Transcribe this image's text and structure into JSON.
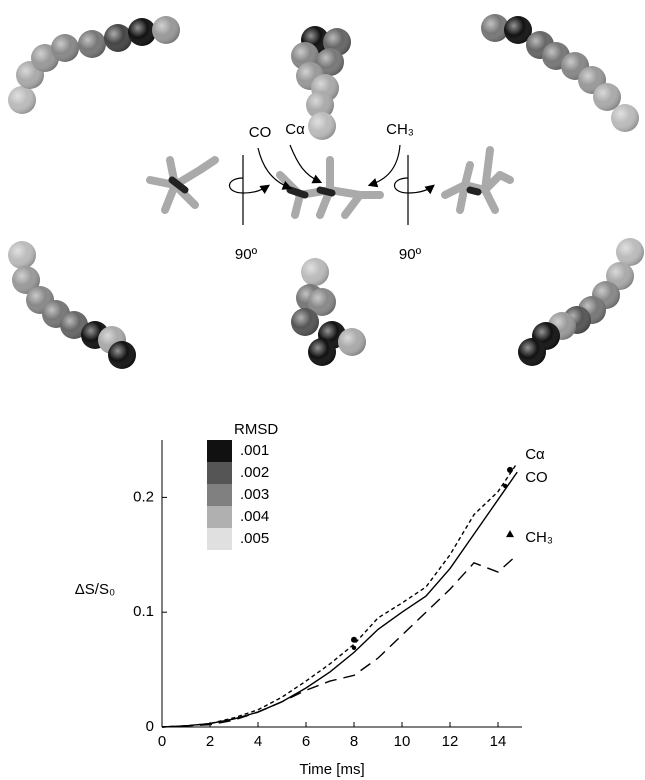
{
  "diagram": {
    "labels": [
      "CO",
      "Cα",
      "CH₃",
      "90º",
      "90º"
    ]
  },
  "chart_data": {
    "type": "line",
    "x_label": "Time [ms]",
    "y_label": "ΔS/S₀",
    "x": [
      0,
      1,
      2,
      3,
      4,
      5,
      6,
      7,
      8,
      9,
      10,
      11,
      12,
      13,
      14,
      14.8
    ],
    "series": [
      {
        "name": "Cα",
        "color": "#000000",
        "style": "dotted",
        "values": [
          0,
          0.001,
          0.003,
          0.008,
          0.015,
          0.026,
          0.04,
          0.055,
          0.072,
          0.095,
          0.108,
          0.122,
          0.15,
          0.185,
          0.205,
          0.23
        ],
        "marker": "circle",
        "marker_x": [
          8,
          14.5
        ],
        "marker_y": [
          0.076,
          0.224
        ]
      },
      {
        "name": "CO",
        "color": "#000000",
        "style": "solid",
        "values": [
          0,
          0.001,
          0.003,
          0.007,
          0.013,
          0.022,
          0.034,
          0.048,
          0.065,
          0.085,
          0.1,
          0.114,
          0.138,
          0.168,
          0.198,
          0.222
        ],
        "marker": "dot",
        "marker_x": [
          8,
          14.3
        ],
        "marker_y": [
          0.069,
          0.21
        ]
      },
      {
        "name": "CH₃",
        "color": "#000000",
        "style": "dashed",
        "values": [
          0,
          0.001,
          0.002,
          0.006,
          0.013,
          0.022,
          0.032,
          0.04,
          0.045,
          0.06,
          0.08,
          0.1,
          0.12,
          0.143,
          0.135,
          0.15
        ],
        "marker": "triangle",
        "marker_x": [
          14.5
        ],
        "marker_y": [
          0.168
        ]
      }
    ],
    "xlim": [
      0,
      15
    ],
    "xticks": [
      0,
      2,
      4,
      6,
      8,
      10,
      12,
      14
    ],
    "ylim": [
      0,
      0.25
    ],
    "yticks": [
      0,
      0.1,
      0.2
    ],
    "color_legend": {
      "title": "RMSD",
      "entries": [
        {
          "label": ".001",
          "color": "#111111"
        },
        {
          "label": ".002",
          "color": "#555555"
        },
        {
          "label": ".003",
          "color": "#808080"
        },
        {
          "label": ".004",
          "color": "#b0b0b0"
        },
        {
          "label": ".005",
          "color": "#e0e0e0"
        }
      ]
    }
  }
}
